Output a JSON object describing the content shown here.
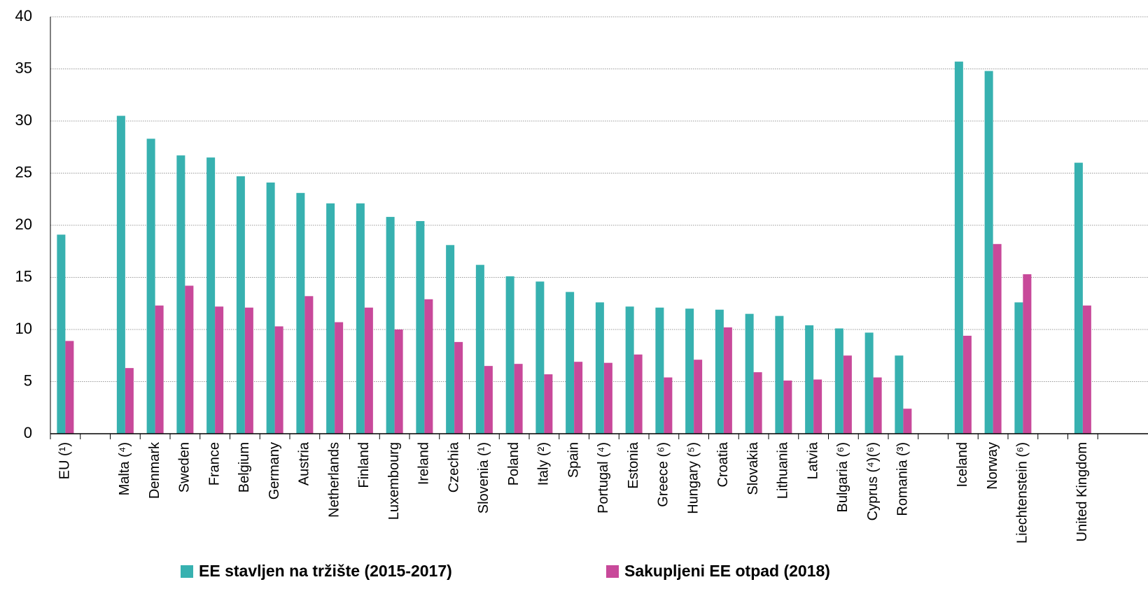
{
  "chart_data": {
    "type": "bar",
    "categories": [
      "EU (¹)",
      null,
      "Malta (⁴)",
      "Denmark",
      "Sweden",
      "France",
      "Belgium",
      "Germany",
      "Austria",
      "Netherlands",
      "Finland",
      "Luxembourg",
      "Ireland",
      "Czechia",
      "Slovenia (¹)",
      "Poland",
      "Italy (²)",
      "Spain",
      "Portugal (⁴)",
      "Estonia",
      "Greece (⁶)",
      "Hungary (⁵)",
      "Croatia",
      "Slovakia",
      "Lithuania",
      "Latvia",
      "Bulgaria (⁶)",
      "Cyprus (⁴)(⁶)",
      "Romania (³)",
      null,
      "Iceland",
      "Norway",
      "Liechtenstein (⁶)",
      null,
      "United Kingdom"
    ],
    "series": [
      {
        "name": "EE stavljen na tržište (2015-2017)",
        "color": "#37b1b0",
        "values": [
          19.1,
          null,
          30.5,
          28.3,
          26.7,
          26.5,
          24.7,
          24.1,
          23.1,
          22.1,
          22.1,
          20.8,
          20.4,
          18.1,
          16.2,
          15.1,
          14.6,
          13.6,
          12.6,
          12.2,
          12.1,
          12.0,
          11.9,
          11.5,
          11.3,
          10.4,
          10.1,
          9.7,
          7.5,
          null,
          35.7,
          34.8,
          12.6,
          null,
          26.0
        ]
      },
      {
        "name": "Sakupljeni EE otpad (2018)",
        "color": "#c8499a",
        "values": [
          8.9,
          null,
          6.3,
          12.3,
          14.2,
          12.2,
          12.1,
          10.3,
          13.2,
          10.7,
          12.1,
          10.0,
          12.9,
          8.8,
          6.5,
          6.7,
          5.7,
          6.9,
          6.8,
          7.6,
          5.4,
          7.1,
          10.2,
          5.9,
          5.1,
          5.2,
          7.5,
          5.4,
          2.4,
          null,
          9.4,
          18.2,
          15.3,
          null,
          12.3
        ]
      }
    ],
    "ylim": [
      0,
      40
    ],
    "yticks": [
      0,
      5,
      10,
      15,
      20,
      25,
      30,
      35,
      40
    ],
    "grid": true,
    "legend": "bottom"
  }
}
